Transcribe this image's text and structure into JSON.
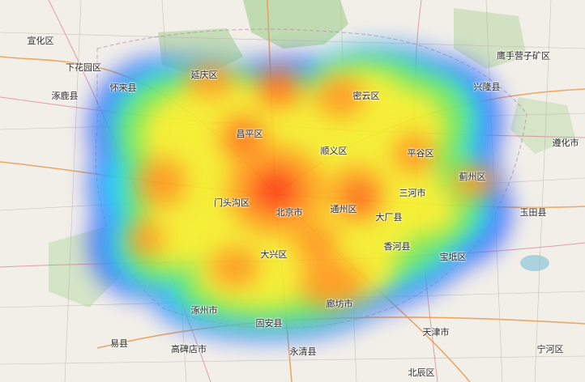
{
  "map": {
    "places": [
      {
        "name": "宣化区"
      },
      {
        "name": "下花园区"
      },
      {
        "name": "涿鹿县"
      },
      {
        "name": "怀来县"
      },
      {
        "name": "鹰手营子矿区"
      },
      {
        "name": "兴隆县"
      },
      {
        "name": "遵化市"
      },
      {
        "name": "延庆区"
      },
      {
        "name": "密云区"
      },
      {
        "name": "昌平区"
      },
      {
        "name": "顺义区"
      },
      {
        "name": "平谷区"
      },
      {
        "name": "蓟州区"
      },
      {
        "name": "三河市"
      },
      {
        "name": "玉田县"
      },
      {
        "name": "门头沟区"
      },
      {
        "name": "北京市"
      },
      {
        "name": "通州区"
      },
      {
        "name": "大厂县"
      },
      {
        "name": "香河县"
      },
      {
        "name": "宝坻区"
      },
      {
        "name": "大兴区"
      },
      {
        "name": "涿州市"
      },
      {
        "name": "固安县"
      },
      {
        "name": "廊坊市"
      },
      {
        "name": "天津市"
      },
      {
        "name": "易县"
      },
      {
        "name": "高碑店市"
      },
      {
        "name": "永清县"
      },
      {
        "name": "宁河区"
      },
      {
        "name": "北辰区"
      }
    ],
    "heatmap": {
      "colors": [
        "#3b5bff",
        "#1ad7ff",
        "#6fe85a",
        "#f6ef2a",
        "#ff9a1a",
        "#ff3a12"
      ]
    }
  }
}
